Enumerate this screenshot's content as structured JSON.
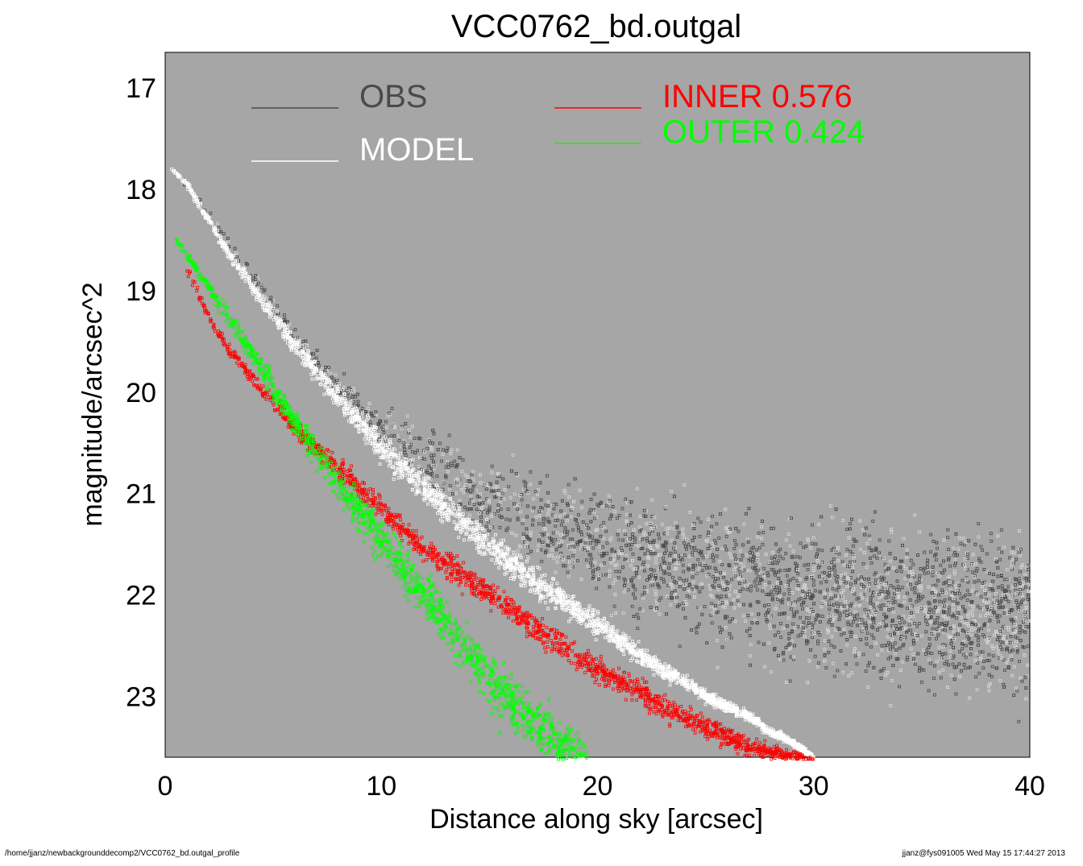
{
  "chart_data": {
    "type": "scatter",
    "title": "VCC0762_bd.outgal",
    "xlabel": "Distance along sky [arcsec]",
    "ylabel": "magnitude/arcsec^2",
    "xlim": [
      0,
      40
    ],
    "ylim": [
      23.6,
      16.65
    ],
    "y_inverted": true,
    "xticks": [
      0,
      10,
      20,
      30,
      40
    ],
    "yticks": [
      17,
      18,
      19,
      20,
      21,
      22,
      23
    ],
    "grid": false,
    "background": "#a6a6a6",
    "series": [
      {
        "name": "OBS",
        "color": "#4a4a4a",
        "x": [
          0.3,
          1,
          2,
          3,
          4,
          5,
          6,
          7,
          8,
          9,
          10,
          11,
          12,
          13,
          14,
          15,
          16,
          17,
          18,
          19,
          20,
          21,
          22,
          23,
          24,
          25,
          26,
          27,
          28,
          29,
          30,
          32,
          34,
          36,
          38,
          40
        ],
        "y": [
          17.8,
          17.95,
          18.25,
          18.55,
          18.85,
          19.15,
          19.45,
          19.7,
          19.95,
          20.15,
          20.35,
          20.5,
          20.65,
          20.8,
          20.95,
          21.05,
          21.15,
          21.25,
          21.35,
          21.45,
          21.5,
          21.6,
          21.65,
          21.7,
          21.75,
          21.8,
          21.85,
          21.9,
          21.95,
          22.0,
          22.0,
          22.05,
          22.1,
          22.15,
          22.2,
          22.2
        ],
        "spread": [
          0.05,
          0.06,
          0.08,
          0.1,
          0.12,
          0.14,
          0.16,
          0.2,
          0.25,
          0.3,
          0.35,
          0.42,
          0.5,
          0.55,
          0.6,
          0.65,
          0.7,
          0.75,
          0.8,
          0.85,
          0.9,
          0.95,
          1.0,
          1.0,
          1.05,
          1.1,
          1.15,
          1.2,
          1.2,
          1.2,
          1.25,
          1.25,
          1.3,
          1.3,
          1.3,
          1.3
        ]
      },
      {
        "name": "MODEL",
        "color": "#ffffff",
        "x": [
          0.3,
          1,
          2,
          3,
          4,
          5,
          6,
          7,
          8,
          9,
          10,
          11,
          12,
          13,
          14,
          15,
          16,
          17,
          18,
          19,
          20,
          21,
          22,
          23,
          24,
          25,
          26,
          27,
          28,
          29,
          30
        ],
        "y": [
          17.8,
          17.95,
          18.3,
          18.65,
          18.95,
          19.25,
          19.55,
          19.8,
          20.05,
          20.3,
          20.55,
          20.75,
          20.95,
          21.15,
          21.35,
          21.5,
          21.7,
          21.85,
          22.0,
          22.15,
          22.3,
          22.45,
          22.6,
          22.75,
          22.85,
          23.0,
          23.1,
          23.2,
          23.35,
          23.45,
          23.6
        ],
        "spread": [
          0.03,
          0.05,
          0.08,
          0.1,
          0.12,
          0.14,
          0.16,
          0.18,
          0.2,
          0.22,
          0.24,
          0.25,
          0.26,
          0.26,
          0.26,
          0.26,
          0.26,
          0.25,
          0.24,
          0.22,
          0.2,
          0.18,
          0.16,
          0.14,
          0.12,
          0.1,
          0.09,
          0.08,
          0.07,
          0.06,
          0.05
        ]
      },
      {
        "name": "INNER  0.576",
        "color": "#ff0000",
        "x": [
          1,
          2,
          3,
          4,
          5,
          6,
          7,
          8,
          9,
          10,
          11,
          12,
          13,
          14,
          15,
          16,
          17,
          18,
          19,
          20,
          21,
          22,
          23,
          24,
          25,
          26,
          27,
          28,
          29,
          30
        ],
        "y": [
          18.8,
          19.25,
          19.6,
          19.85,
          20.1,
          20.35,
          20.55,
          20.75,
          20.95,
          21.15,
          21.35,
          21.55,
          21.7,
          21.85,
          22.0,
          22.15,
          22.3,
          22.45,
          22.6,
          22.75,
          22.85,
          22.95,
          23.1,
          23.2,
          23.3,
          23.4,
          23.5,
          23.55,
          23.6,
          23.65
        ],
        "spread": [
          0.1,
          0.1,
          0.12,
          0.12,
          0.14,
          0.16,
          0.18,
          0.2,
          0.2,
          0.2,
          0.2,
          0.22,
          0.22,
          0.22,
          0.22,
          0.22,
          0.22,
          0.22,
          0.22,
          0.22,
          0.2,
          0.2,
          0.2,
          0.2,
          0.18,
          0.18,
          0.16,
          0.14,
          0.12,
          0.1
        ]
      },
      {
        "name": "OUTER  0.424",
        "color": "#00ff00",
        "x": [
          0.5,
          1,
          2,
          3,
          4,
          5,
          6,
          7,
          8,
          9,
          10,
          11,
          12,
          13,
          14,
          15,
          16,
          17,
          18,
          19,
          19.5
        ],
        "y": [
          18.5,
          18.65,
          18.95,
          19.3,
          19.6,
          19.95,
          20.3,
          20.6,
          20.9,
          21.2,
          21.45,
          21.75,
          22.0,
          22.3,
          22.55,
          22.85,
          23.05,
          23.25,
          23.4,
          23.55,
          23.6
        ],
        "spread": [
          0.05,
          0.08,
          0.12,
          0.15,
          0.18,
          0.2,
          0.22,
          0.25,
          0.3,
          0.32,
          0.35,
          0.38,
          0.4,
          0.42,
          0.45,
          0.48,
          0.5,
          0.5,
          0.5,
          0.45,
          0.4
        ]
      }
    ]
  },
  "legend": {
    "obs_label": "OBS",
    "model_label": "MODEL",
    "inner_label": "INNER  0.576",
    "outer_label": "OUTER  0.424",
    "obs_color": "#4a4a4a",
    "model_color": "#ffffff",
    "inner_color": "#ff0000",
    "outer_color": "#00ff00"
  },
  "footer": {
    "path": "/home/jjanz/newbackgrounddecomp2/VCC0762_bd.outgal_profile",
    "stamp": "jjanz@fys091005  Wed May 15 17:44:27 2013"
  }
}
